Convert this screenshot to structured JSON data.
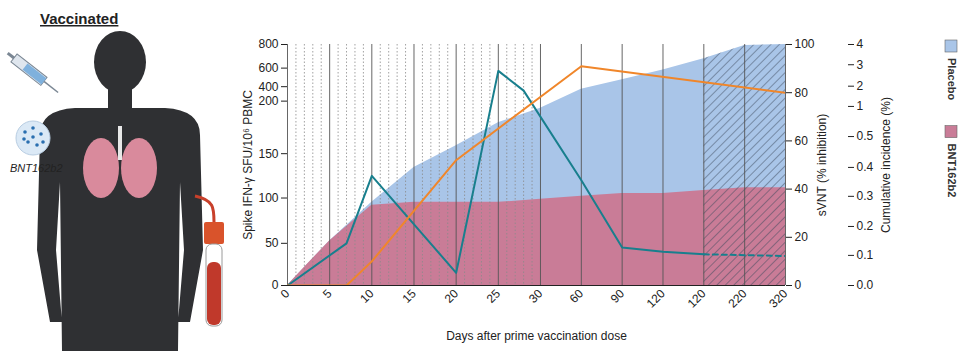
{
  "chart_data": {
    "type": "line",
    "title": "Vaccinated",
    "annotations": [
      "BNT162b2"
    ],
    "x_label": "Days after prime vaccination dose",
    "y_label": "Spike IFN-γ SFU/10⁶ PBMC",
    "y2_label": "sVNT (% inhibition)",
    "y3_label": "Cumulative incidence (%)",
    "categories": [
      "0",
      null,
      null,
      null,
      null,
      "5",
      null,
      null,
      null,
      null,
      "10",
      null,
      null,
      null,
      null,
      "15",
      null,
      null,
      null,
      null,
      "20",
      null,
      null,
      null,
      null,
      "25",
      null,
      null,
      null,
      null,
      "30",
      "60",
      "90",
      "120",
      "120",
      "220",
      "320"
    ],
    "ylim": [
      0,
      800
    ],
    "yticks": [
      0,
      50,
      100,
      150,
      200,
      400,
      600,
      800
    ],
    "y2lim": [
      0,
      100
    ],
    "y2ticks": [
      0,
      20,
      40,
      60,
      80,
      100
    ],
    "y3lim": [
      0,
      4
    ],
    "y3ticks": [
      {
        "value": 0,
        "label": "0.0"
      },
      0.1,
      0.2,
      0.3,
      0.4,
      0.5,
      1,
      2,
      3,
      4
    ],
    "grid": true,
    "legend": "right",
    "stacked": false,
    "series": [
      {
        "name": "Placebo",
        "type": "area",
        "axis": "y3",
        "color": "#a9c5e8",
        "values": [
          0,
          null,
          null,
          null,
          null,
          0.15,
          null,
          null,
          null,
          null,
          0.28,
          null,
          null,
          null,
          null,
          0.4,
          null,
          null,
          null,
          null,
          0.47,
          null,
          null,
          null,
          null,
          0.73,
          null,
          null,
          null,
          null,
          0.97,
          1.85,
          2.3,
          2.75,
          3.3,
          3.95,
          4
        ]
      },
      {
        "name": "BNT162b2",
        "type": "area",
        "axis": "y3",
        "color": "#c97c97",
        "values": [
          0,
          null,
          0.06,
          null,
          null,
          0.15,
          null,
          0.2,
          null,
          null,
          0.27,
          null,
          null,
          null,
          null,
          0.28,
          null,
          null,
          null,
          null,
          0.28,
          null,
          null,
          null,
          null,
          0.28,
          null,
          null,
          null,
          null,
          0.29,
          0.3,
          0.31,
          0.31,
          0.32,
          0.33,
          0.33
        ]
      },
      {
        "type": "line",
        "axis": "y",
        "color": "#187f8d",
        "line_style": "solid",
        "values": [
          0,
          null,
          null,
          null,
          null,
          null,
          null,
          50,
          null,
          null,
          125,
          null,
          null,
          null,
          null,
          null,
          null,
          null,
          null,
          null,
          15,
          null,
          null,
          null,
          null,
          570,
          null,
          null,
          345,
          null,
          null,
          120,
          45,
          40,
          37,
          null,
          null
        ]
      },
      {
        "type": "line",
        "axis": "y",
        "color": "#187f8d",
        "line_style": "dashed",
        "values": [
          null,
          null,
          null,
          null,
          null,
          null,
          null,
          null,
          null,
          null,
          null,
          null,
          null,
          null,
          null,
          null,
          null,
          null,
          null,
          null,
          null,
          null,
          null,
          null,
          null,
          null,
          null,
          null,
          null,
          null,
          null,
          null,
          null,
          null,
          37,
          null,
          35
        ]
      },
      {
        "type": "line",
        "axis": "y2",
        "color": "#f0862a",
        "line_style": "solid",
        "values": [
          0,
          null,
          null,
          null,
          null,
          null,
          null,
          0,
          null,
          null,
          10,
          null,
          null,
          null,
          null,
          null,
          null,
          null,
          null,
          null,
          52,
          null,
          null,
          null,
          null,
          null,
          null,
          null,
          null,
          null,
          null,
          91,
          null,
          null,
          null,
          null,
          80
        ]
      }
    ]
  }
}
